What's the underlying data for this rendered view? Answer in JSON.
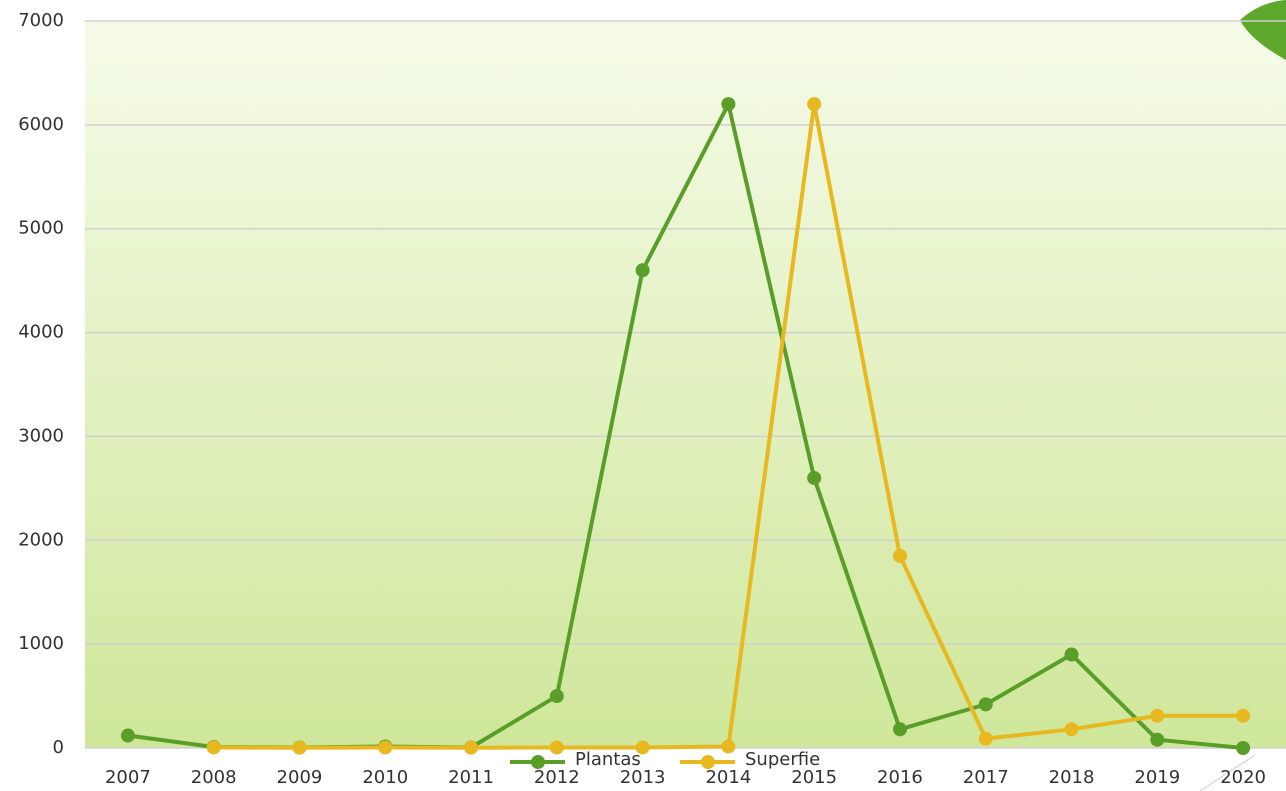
{
  "chart_data": {
    "type": "line",
    "categories": [
      "2007",
      "2008",
      "2009",
      "2010",
      "2011",
      "2012",
      "2013",
      "2014",
      "2015",
      "2016",
      "2017",
      "2018",
      "2019",
      "2020"
    ],
    "series": [
      {
        "name": "Plantas",
        "color": "#5a9e2a",
        "values": [
          120,
          10,
          5,
          15,
          5,
          500,
          4600,
          6200,
          2600,
          180,
          420,
          900,
          80,
          0
        ]
      },
      {
        "name": "Superfie",
        "color": "#e8b820",
        "values": [
          null,
          5,
          3,
          5,
          3,
          5,
          5,
          15,
          6200,
          1850,
          90,
          180,
          310,
          310
        ]
      }
    ],
    "ylim": [
      0,
      7000
    ],
    "yticks": [
      0,
      1000,
      2000,
      3000,
      4000,
      5000,
      6000,
      7000
    ],
    "grid": true,
    "legend": "bottom"
  }
}
